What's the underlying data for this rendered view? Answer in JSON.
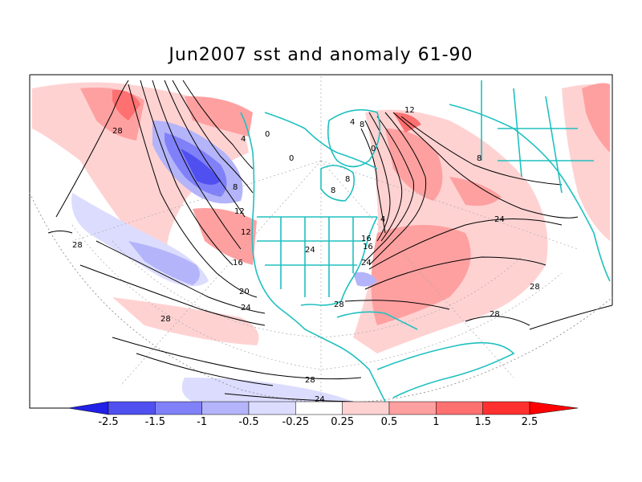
{
  "map": {
    "title": "Jun2007 sst and anomaly 61-90",
    "contour_labels": [
      "28",
      "26",
      "20",
      "24",
      "28",
      "28",
      "8",
      "12",
      "16",
      "12",
      "16",
      "20",
      "24",
      "4",
      "0",
      "0",
      "8",
      "4",
      "8",
      "0",
      "12",
      "16",
      "16",
      "4",
      "8",
      "8",
      "28",
      "28",
      "24",
      "24",
      "28",
      "28",
      "24"
    ],
    "colorbar": {
      "ticks": [
        "-2.5",
        "-1.5",
        "-1",
        "-0.5",
        "-0.25",
        "0.25",
        "0.5",
        "1",
        "1.5",
        "2.5"
      ],
      "colors": [
        "#2020e6",
        "#5050f0",
        "#8080f8",
        "#b4b4fa",
        "#dcdcff",
        "#ffffff",
        "#ffd2d2",
        "#ffa0a0",
        "#ff7070",
        "#ff3030",
        "#ff0000"
      ]
    }
  }
}
